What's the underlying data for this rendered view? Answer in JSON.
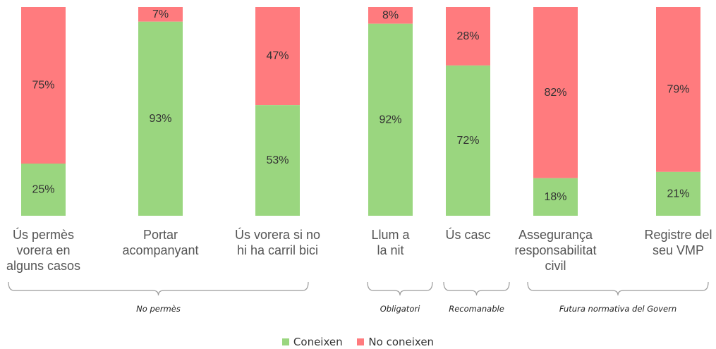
{
  "chart_data": {
    "type": "bar",
    "stacked": true,
    "percent": true,
    "ylim": [
      0,
      100
    ],
    "categories": [
      [
        "Ús permès",
        "vorera en",
        "alguns casos"
      ],
      [
        "Portar",
        "acompanyant"
      ],
      [
        "Ús vorera si no",
        "hi ha carril bici"
      ],
      [
        "Llum a",
        "la nit"
      ],
      [
        "Ús casc"
      ],
      [
        "Assegurança",
        "responsabilitat",
        "civil"
      ],
      [
        "Registre del",
        "seu VMP"
      ]
    ],
    "series": [
      {
        "name": "Coneixen",
        "color": "#9AD67F",
        "values": [
          25,
          93,
          53,
          92,
          72,
          18,
          21
        ]
      },
      {
        "name": "No coneixen",
        "color": "#FF7B7E",
        "values": [
          75,
          7,
          47,
          8,
          28,
          82,
          79
        ]
      }
    ],
    "labels": {
      "Coneixen": [
        "25%",
        "93%",
        "53%",
        "92%",
        "72%",
        "18%",
        "21%"
      ],
      "No coneixen": [
        "75%",
        "7%",
        "47%",
        "8%",
        "28%",
        "82%",
        "79%"
      ]
    },
    "groups": [
      {
        "label": "No permès",
        "categories": [
          0,
          1,
          2
        ]
      },
      {
        "label": "Obligatori",
        "categories": [
          3
        ]
      },
      {
        "label": "Recomanable",
        "categories": [
          4
        ]
      },
      {
        "label": "Futura normativa del Govern",
        "categories": [
          5,
          6
        ]
      }
    ],
    "legend_position": "bottom",
    "grid": false,
    "title": "",
    "xlabel": "",
    "ylabel": ""
  }
}
